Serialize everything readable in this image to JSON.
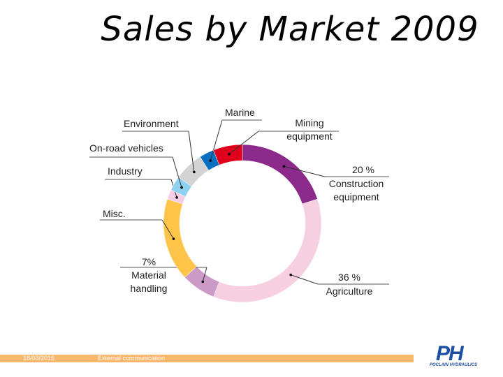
{
  "chart_data": {
    "type": "donut",
    "title": "Sales by Market 2009",
    "categories": [
      "Construction equipment",
      "Agriculture",
      "Material handling",
      "Misc.",
      "Industry",
      "On-road vehicles",
      "Environment",
      "Marine",
      "Mining equipment"
    ],
    "values": [
      20,
      36,
      7,
      17,
      2,
      3,
      6,
      3,
      6
    ],
    "value_labels": [
      "20 %",
      "36 %",
      "7%",
      null,
      null,
      null,
      null,
      null,
      null
    ],
    "colors": [
      "#8b2a8a",
      "#f6d0e1",
      "#cc9ac6",
      "#ffc54a",
      "#f3cde6",
      "#8ed1f0",
      "#d3d3d3",
      "#0a6fc0",
      "#e1001b"
    ]
  },
  "footer": {
    "date": "18/03/2016",
    "note": "External communication",
    "logo": "PH",
    "company": "POCLAIN HYDRAULICS"
  }
}
